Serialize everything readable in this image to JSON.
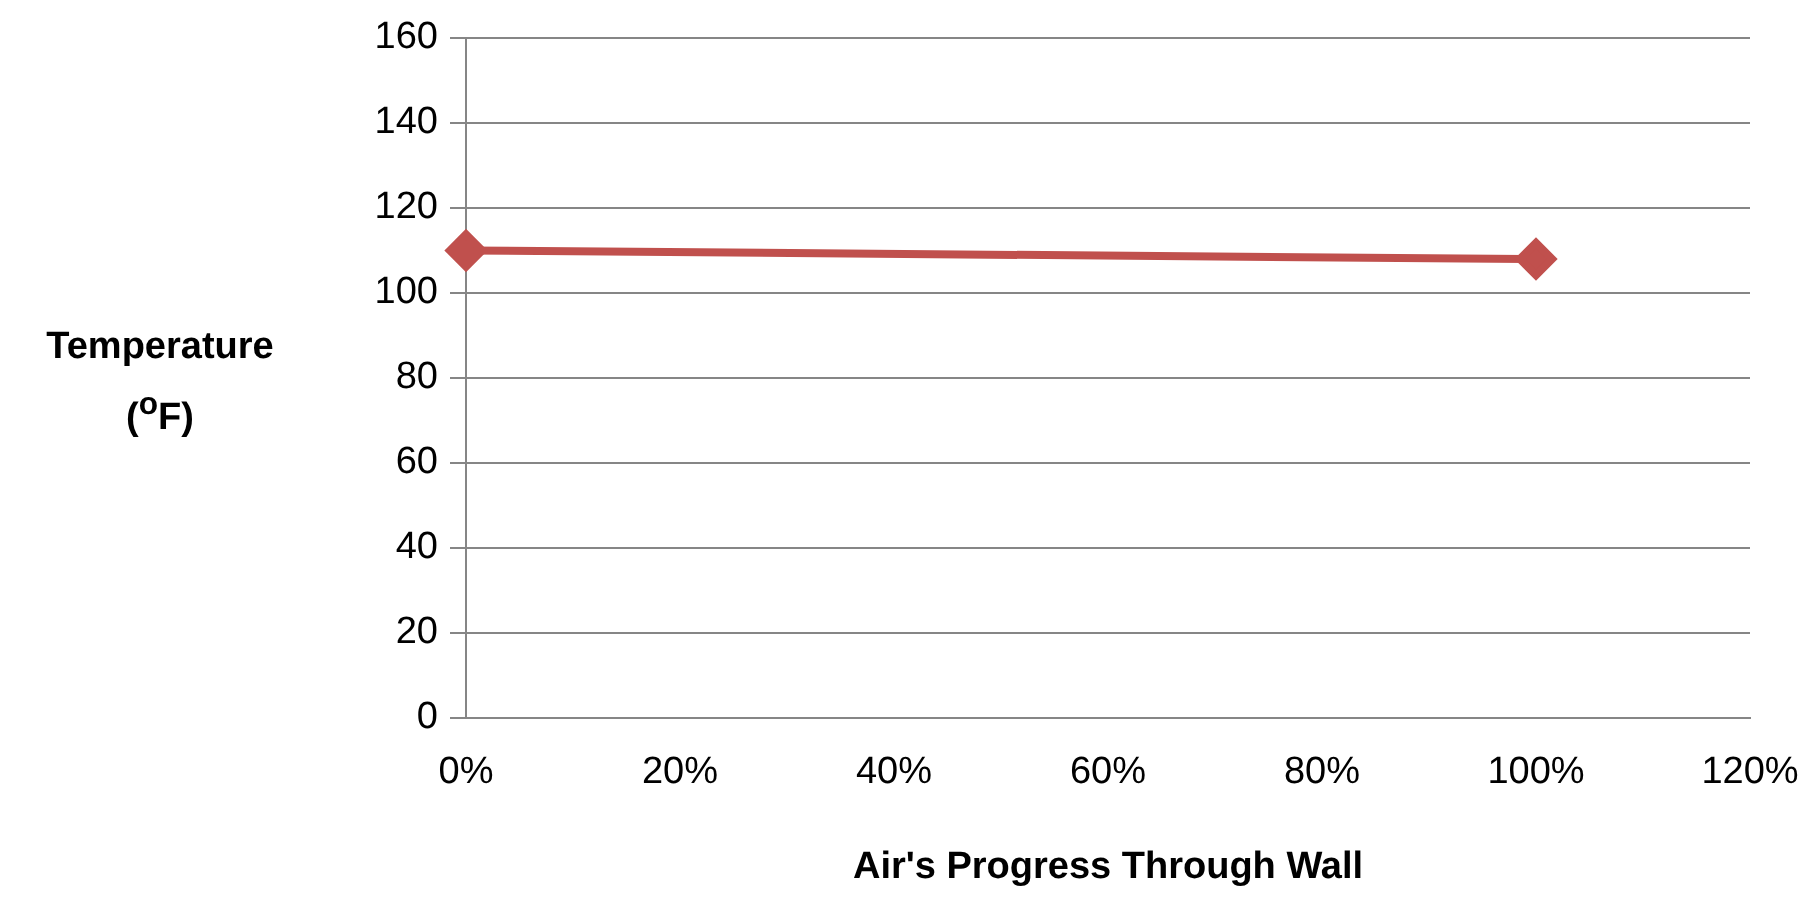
{
  "chart_data": {
    "type": "line",
    "xlabel": "Air's Progress Through Wall",
    "ylabel": "Temperature ($^{o}$F)",
    "x": [
      0,
      100
    ],
    "series": [
      {
        "color": "#c0504d",
        "values": [
          110,
          108
        ]
      }
    ],
    "xlim": [
      0,
      120
    ],
    "xticks": [
      {
        "value": 0,
        "label": "0%"
      },
      {
        "value": 20,
        "label": "20%"
      },
      {
        "value": 40,
        "label": "40%"
      },
      {
        "value": 60,
        "label": "60%"
      },
      {
        "value": 80,
        "label": "80%"
      },
      {
        "value": 100,
        "label": "100%"
      },
      {
        "value": 120,
        "label": "120%"
      }
    ],
    "ylim": [
      0,
      160
    ],
    "yticks": [
      0,
      20,
      40,
      60,
      80,
      100,
      120,
      140,
      160
    ],
    "grid": "y",
    "legend": false,
    "marker": "diamond",
    "line_style": "solid"
  }
}
